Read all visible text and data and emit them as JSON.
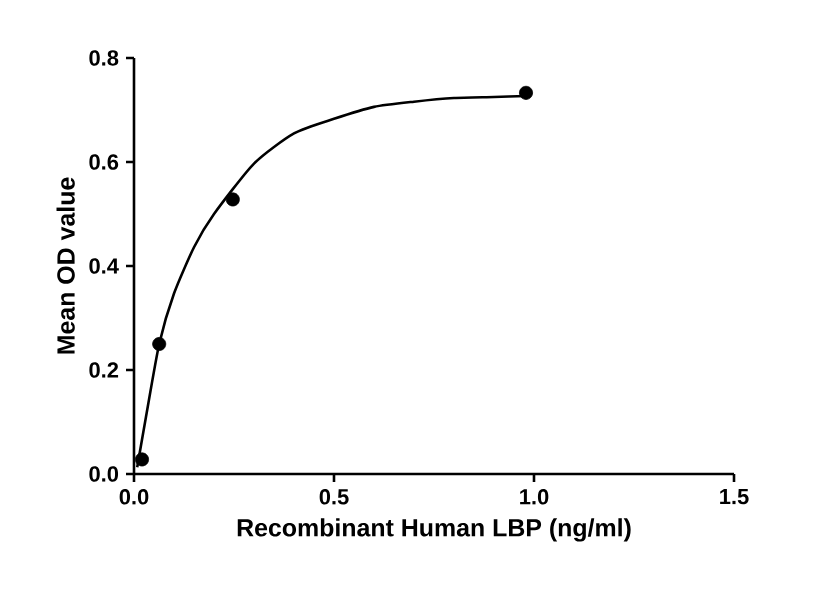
{
  "chart_data": {
    "type": "scatter",
    "xlabel": "Recombinant Human LBP (ng/ml)",
    "ylabel": "Mean OD value",
    "xlim": [
      0,
      1.5
    ],
    "xticks": [
      {
        "value": 0,
        "label": "0.0"
      },
      0.5,
      {
        "value": 1,
        "label": "1.0"
      },
      1.5
    ],
    "ylim": [
      0,
      0.8
    ],
    "yticks": [
      {
        "value": 0,
        "label": "0.0"
      },
      0.2,
      0.4,
      0.6,
      0.8
    ],
    "grid": false,
    "series": [
      {
        "color": "#000000",
        "marker": "circle",
        "x": [
          0.02,
          0.063,
          0.247,
          0.98
        ],
        "values": [
          0.028,
          0.25,
          0.528,
          0.733
        ]
      },
      {
        "type": "line",
        "color": "#000000",
        "marker": "none",
        "line_style": "solid",
        "x": [
          0.008,
          0.03,
          0.063,
          0.1,
          0.15,
          0.2,
          0.3,
          0.4,
          0.5,
          0.6,
          0.7,
          0.8,
          0.9,
          0.98
        ],
        "values": [
          0.013,
          0.11,
          0.25,
          0.347,
          0.436,
          0.5,
          0.597,
          0.655,
          0.683,
          0.706,
          0.716,
          0.723,
          0.725,
          0.727
        ]
      }
    ]
  }
}
